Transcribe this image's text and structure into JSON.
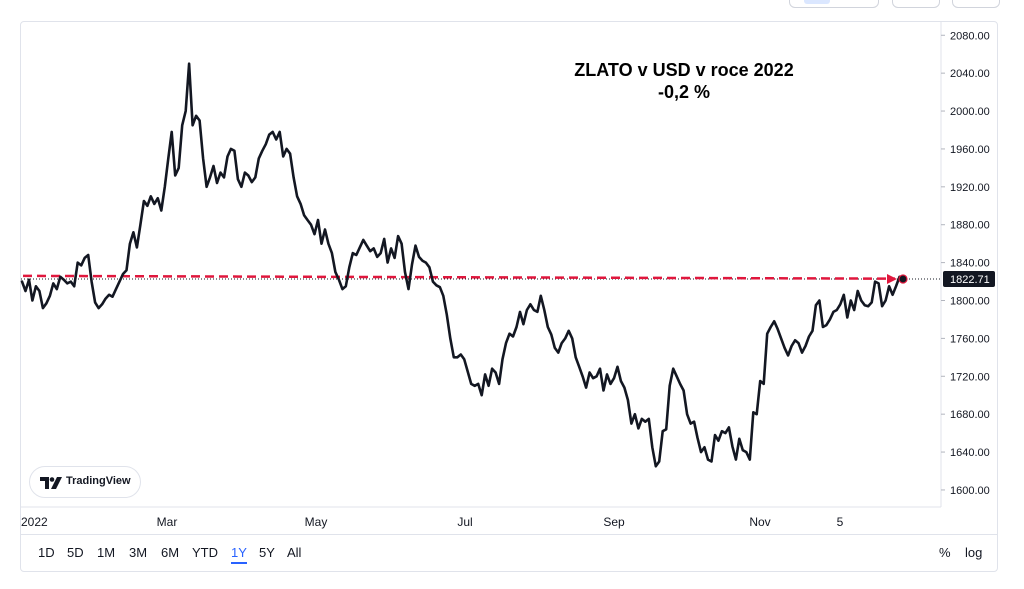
{
  "chart_data": {
    "type": "line",
    "title_line1": "ZLATO v USD v roce 2022",
    "title_line2": "-0,2 %",
    "y_axis": {
      "ticks": [
        "2080.00",
        "2040.00",
        "2000.00",
        "1960.00",
        "1920.00",
        "1880.00",
        "1840.00",
        "1800.00",
        "1760.00",
        "1720.00",
        "1680.00",
        "1640.00",
        "1600.00"
      ],
      "range": [
        1582,
        2094
      ]
    },
    "x_axis": {
      "tick_labels": [
        "2022",
        "Mar",
        "May",
        "Jul",
        "Sep",
        "Nov",
        "5"
      ]
    },
    "last_price_label": "1822.71",
    "reference_price": 1826,
    "series": [
      {
        "color": "#131722",
        "values": [
          1820,
          1810,
          1822,
          1800,
          1815,
          1810,
          1792,
          1797,
          1805,
          1818,
          1812,
          1825,
          1822,
          1818,
          1820,
          1815,
          1840,
          1837,
          1845,
          1848,
          1820,
          1798,
          1792,
          1796,
          1802,
          1806,
          1804,
          1812,
          1820,
          1828,
          1832,
          1860,
          1872,
          1856,
          1880,
          1905,
          1900,
          1910,
          1902,
          1908,
          1895,
          1920,
          1950,
          1978,
          1932,
          1940,
          1985,
          2000,
          2050,
          1985,
          1995,
          1990,
          1950,
          1920,
          1930,
          1942,
          1924,
          1935,
          1930,
          1952,
          1960,
          1958,
          1928,
          1920,
          1935,
          1932,
          1925,
          1930,
          1950,
          1958,
          1965,
          1975,
          1978,
          1970,
          1978,
          1952,
          1960,
          1955,
          1930,
          1910,
          1902,
          1890,
          1885,
          1880,
          1870,
          1885,
          1860,
          1875,
          1860,
          1850,
          1830,
          1822,
          1812,
          1815,
          1835,
          1850,
          1848,
          1856,
          1864,
          1858,
          1852,
          1855,
          1846,
          1850,
          1865,
          1840,
          1855,
          1845,
          1868,
          1860,
          1830,
          1812,
          1838,
          1858,
          1846,
          1842,
          1840,
          1835,
          1820,
          1816,
          1814,
          1805,
          1785,
          1760,
          1740,
          1740,
          1743,
          1738,
          1725,
          1712,
          1710,
          1712,
          1700,
          1722,
          1710,
          1728,
          1724,
          1712,
          1738,
          1755,
          1765,
          1762,
          1772,
          1788,
          1775,
          1790,
          1796,
          1790,
          1788,
          1805,
          1790,
          1772,
          1764,
          1750,
          1745,
          1755,
          1760,
          1768,
          1760,
          1740,
          1730,
          1720,
          1708,
          1724,
          1718,
          1720,
          1728,
          1705,
          1722,
          1712,
          1718,
          1730,
          1715,
          1708,
          1695,
          1670,
          1680,
          1665,
          1675,
          1672,
          1675,
          1645,
          1625,
          1630,
          1662,
          1664,
          1710,
          1728,
          1720,
          1712,
          1705,
          1680,
          1670,
          1672,
          1655,
          1640,
          1645,
          1632,
          1630,
          1658,
          1652,
          1662,
          1660,
          1666,
          1646,
          1632,
          1654,
          1642,
          1640,
          1632,
          1682,
          1680,
          1715,
          1712,
          1765,
          1772,
          1778,
          1770,
          1760,
          1750,
          1742,
          1752,
          1758,
          1755,
          1745,
          1752,
          1762,
          1768,
          1795,
          1800,
          1772,
          1774,
          1780,
          1788,
          1790,
          1796,
          1806,
          1782,
          1800,
          1790,
          1810,
          1800,
          1795,
          1794,
          1798,
          1820,
          1818,
          1794,
          1800,
          1815,
          1806,
          1815,
          1825,
          1822.71
        ]
      }
    ]
  },
  "branding": {
    "logo_text": "TradingView"
  },
  "range_buttons": [
    "1D",
    "5D",
    "1M",
    "3M",
    "6M",
    "YTD",
    "1Y",
    "5Y",
    "All"
  ],
  "active_range": "1Y",
  "right_controls": {
    "percent": "%",
    "log": "log"
  }
}
